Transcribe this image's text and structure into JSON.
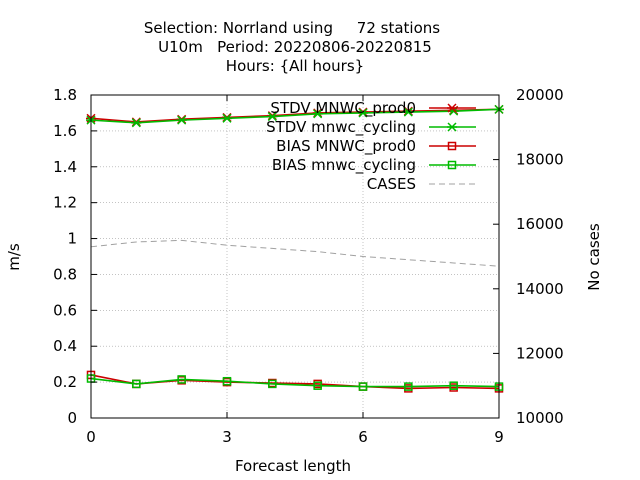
{
  "chart_data": {
    "type": "line",
    "title_lines": [
      "Selection: Norrland using     72 stations",
      "U10m   Period: 20220806-20220815",
      "Hours: {All hours}"
    ],
    "xlabel": "Forecast length",
    "ylabel": "m/s",
    "y2label": "No cases",
    "xlim": [
      0,
      9
    ],
    "ylim": [
      0,
      1.8
    ],
    "y2lim": [
      10000,
      20000
    ],
    "x_ticks": [
      "0",
      "3",
      "6",
      "9"
    ],
    "y_ticks": [
      "0",
      "0.2",
      "0.4",
      "0.6",
      "0.8",
      "1",
      "1.2",
      "1.4",
      "1.6",
      "1.8"
    ],
    "y2_ticks": [
      "10000",
      "12000",
      "14000",
      "16000",
      "18000",
      "20000"
    ],
    "grid": true,
    "legend_position": "top-right",
    "x": [
      0,
      1,
      2,
      3,
      4,
      5,
      6,
      7,
      8,
      9
    ],
    "series": [
      {
        "name": "STDV MNWC_prod0",
        "axis": "y1",
        "color": "#cc0000",
        "marker": "x",
        "dash": false,
        "values": [
          1.67,
          1.65,
          1.665,
          1.675,
          1.685,
          1.7,
          1.705,
          1.71,
          1.715,
          1.72
        ]
      },
      {
        "name": "STDV mnwc_cycling",
        "axis": "y1",
        "color": "#00bb00",
        "marker": "x",
        "dash": false,
        "values": [
          1.66,
          1.645,
          1.66,
          1.67,
          1.68,
          1.695,
          1.7,
          1.705,
          1.71,
          1.72
        ]
      },
      {
        "name": "BIAS MNWC_prod0",
        "axis": "y1",
        "color": "#cc0000",
        "marker": "square",
        "dash": false,
        "values": [
          0.24,
          0.19,
          0.21,
          0.2,
          0.195,
          0.19,
          0.175,
          0.165,
          0.17,
          0.165
        ]
      },
      {
        "name": "BIAS mnwc_cycling",
        "axis": "y1",
        "color": "#00bb00",
        "marker": "square",
        "dash": false,
        "values": [
          0.22,
          0.19,
          0.215,
          0.205,
          0.19,
          0.18,
          0.175,
          0.175,
          0.18,
          0.175
        ]
      },
      {
        "name": "CASES",
        "axis": "y2",
        "color": "#a0a0a0",
        "marker": "none",
        "dash": true,
        "values": [
          15300,
          15450,
          15500,
          15350,
          15250,
          15150,
          15000,
          14900,
          14800,
          14700
        ]
      }
    ]
  }
}
